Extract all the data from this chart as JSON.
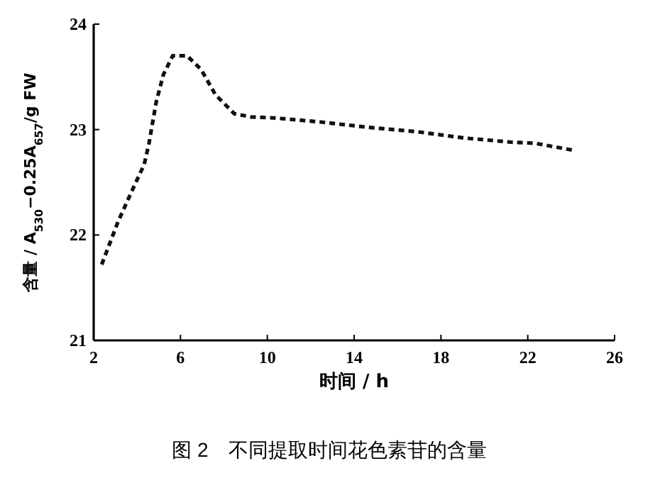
{
  "chart_data": {
    "type": "line",
    "xlabel": "时间 / h",
    "ylabel": "含量 / A$_{530}$−0.25A$_{657}$/g FW",
    "annotations": [
      "图 2　不同提取时间花色素苷的含量"
    ],
    "xlim": [
      2,
      26
    ],
    "xticks": [
      2,
      6,
      10,
      14,
      18,
      22,
      26
    ],
    "ylim": [
      21,
      24
    ],
    "yticks": [
      21,
      22,
      23,
      24
    ],
    "grid": false,
    "line_style": "dashed",
    "marker": "none",
    "series": [
      {
        "color": "#111111",
        "x": [
          2.37,
          3.13,
          3.79,
          4.33,
          4.55,
          4.88,
          5.21,
          5.64,
          6.3,
          6.95,
          7.61,
          8.48,
          9.24,
          10.34,
          12.52,
          14.7,
          16.88,
          19.06,
          21.25,
          22.34,
          24.19
        ],
        "values": [
          21.72,
          22.13,
          22.43,
          22.67,
          22.87,
          23.26,
          23.52,
          23.7,
          23.7,
          23.57,
          23.33,
          23.15,
          23.12,
          23.11,
          23.07,
          23.02,
          22.98,
          22.92,
          22.88,
          22.87,
          22.8
        ]
      }
    ]
  }
}
